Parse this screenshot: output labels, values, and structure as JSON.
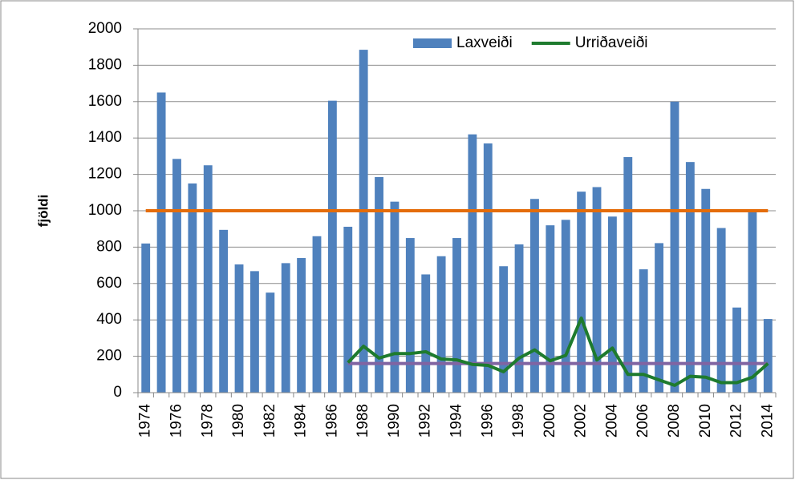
{
  "chart_data": {
    "type": "bar_line",
    "y_label": "fjöldi",
    "categories": [
      "1974",
      null,
      "1976",
      null,
      "1978",
      null,
      "1980",
      null,
      "1982",
      null,
      "1984",
      null,
      "1986",
      null,
      "1988",
      null,
      "1990",
      null,
      "1992",
      null,
      "1994",
      null,
      "1996",
      null,
      "1998",
      null,
      "2000",
      null,
      "2002",
      null,
      "2004",
      null,
      "2006",
      null,
      "2008",
      null,
      "2010",
      null,
      "2012",
      null,
      "2014"
    ],
    "series": [
      {
        "name": "Laxveiði",
        "type": "bar",
        "color": "#4f81bd",
        "values": [
          820,
          1650,
          1285,
          1150,
          1250,
          895,
          705,
          668,
          550,
          712,
          740,
          860,
          1605,
          912,
          1885,
          1185,
          1050,
          850,
          650,
          750,
          850,
          1420,
          1370,
          695,
          815,
          1065,
          920,
          950,
          1105,
          1130,
          968,
          1295,
          678,
          822,
          1600,
          1268,
          1120,
          905,
          468,
          1000,
          405
        ]
      },
      {
        "name": "Urriðaveiði",
        "type": "line",
        "color": "#1e7b2e",
        "values": [
          null,
          null,
          null,
          null,
          null,
          null,
          null,
          null,
          null,
          null,
          null,
          null,
          null,
          165,
          255,
          190,
          215,
          215,
          225,
          185,
          180,
          155,
          150,
          115,
          190,
          235,
          175,
          205,
          410,
          180,
          245,
          100,
          100,
          70,
          40,
          90,
          85,
          55,
          55,
          85,
          160
        ]
      }
    ],
    "reference_lines": [
      {
        "value": 1000,
        "color": "#e46c0a",
        "x_from": 1974,
        "x_to": 2014
      },
      {
        "value": 160,
        "color": "#8064a2",
        "x_from": 1987,
        "x_to": 2014
      }
    ],
    "ylim": [
      0,
      2000
    ],
    "yticks": [
      0,
      200,
      400,
      600,
      800,
      1000,
      1200,
      1400,
      1600,
      1800,
      2000
    ],
    "grid": true,
    "legend": "top-right"
  }
}
